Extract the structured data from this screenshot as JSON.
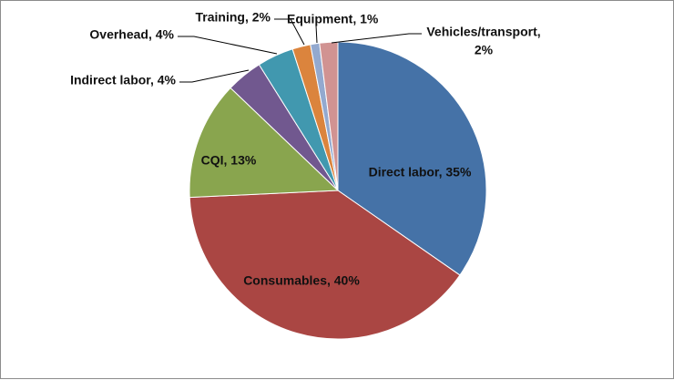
{
  "chart_data": {
    "type": "pie",
    "title": "",
    "start_angle_deg": 0,
    "direction": "clockwise",
    "slices": [
      {
        "label": "Direct labor",
        "value": 35,
        "value_label": "35%",
        "color": "#4572A7"
      },
      {
        "label": "Consumables",
        "value": 40,
        "value_label": "40%",
        "color": "#AA4643"
      },
      {
        "label": "CQI",
        "value": 13,
        "value_label": "13%",
        "color": "#89A54E"
      },
      {
        "label": "Indirect labor",
        "value": 4,
        "value_label": "4%",
        "color": "#71588F"
      },
      {
        "label": "Overhead",
        "value": 4,
        "value_label": "4%",
        "color": "#4198AF"
      },
      {
        "label": "Training",
        "value": 2,
        "value_label": "2%",
        "color": "#DB843D"
      },
      {
        "label": "Equipment",
        "value": 1,
        "value_label": "1%",
        "color": "#93A9CF"
      },
      {
        "label": "Vehicles/transport",
        "value": 2,
        "value_label": "2%",
        "color": "#D19392"
      }
    ]
  }
}
